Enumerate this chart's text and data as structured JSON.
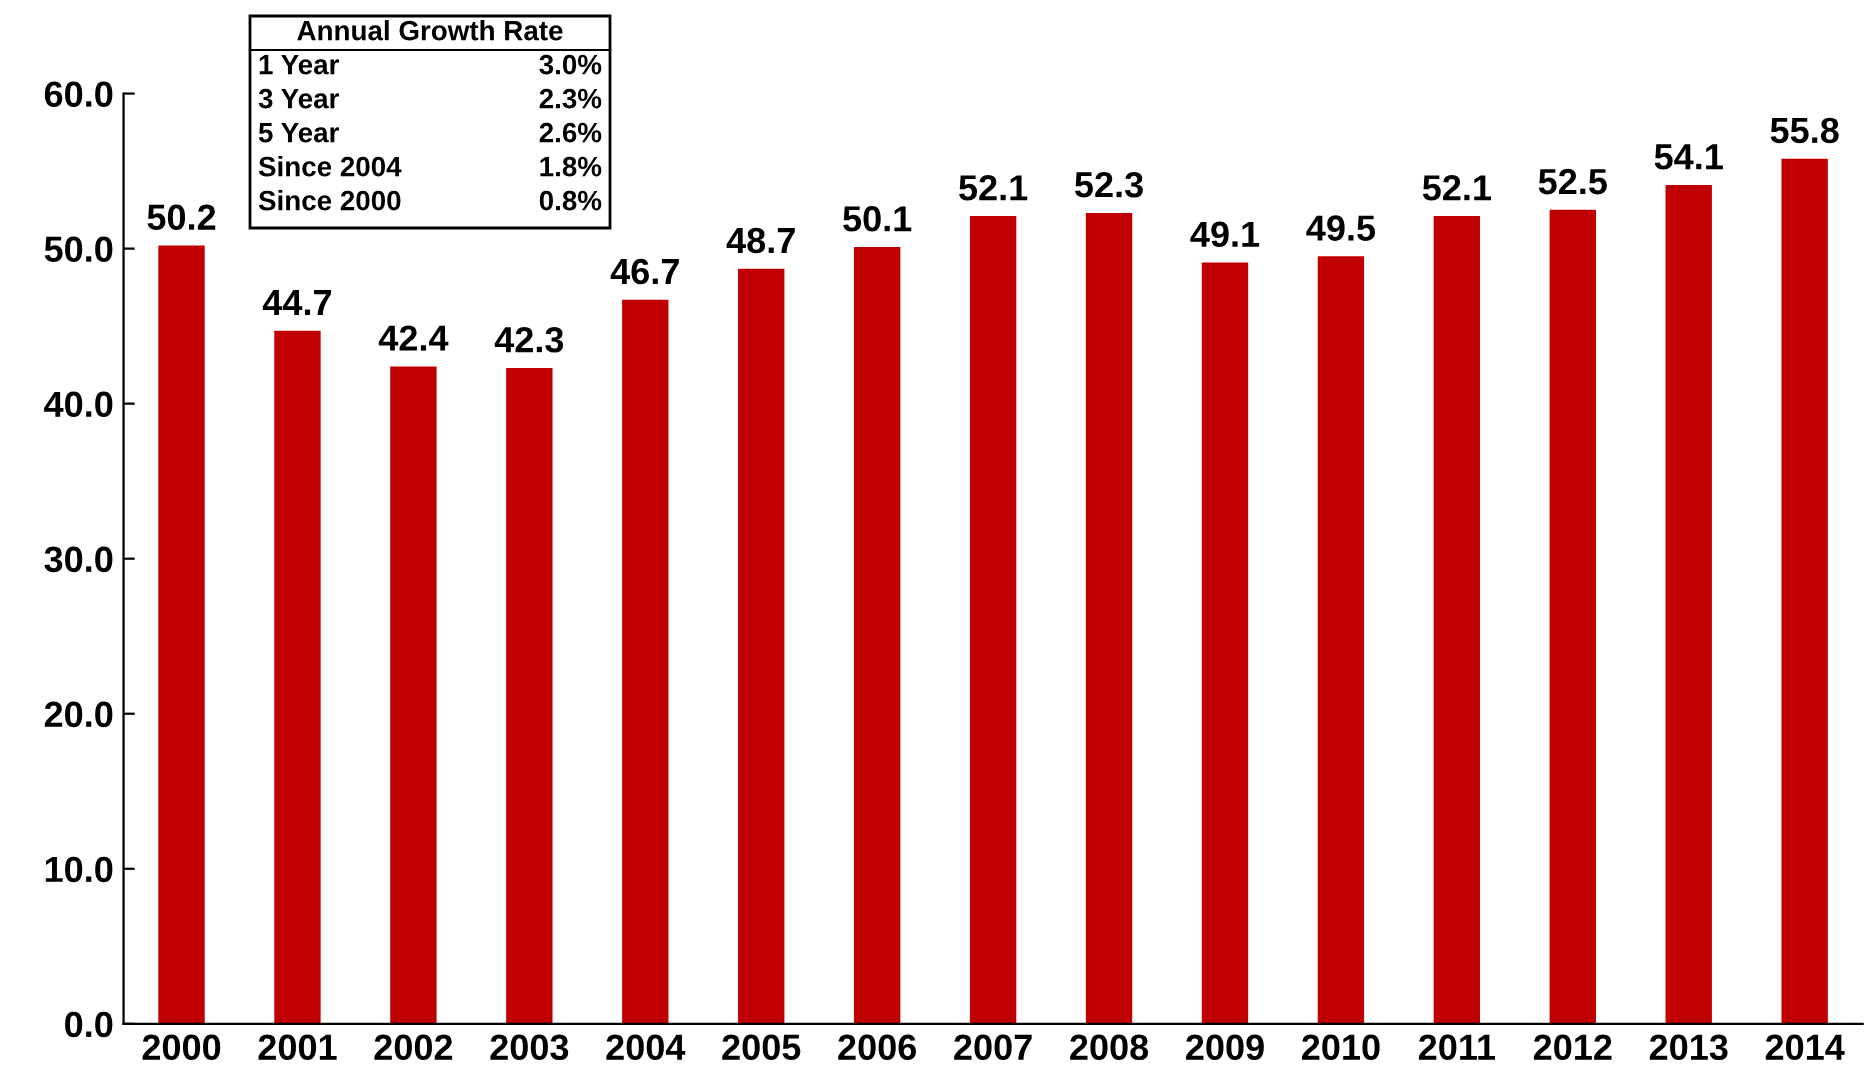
{
  "chart_data": {
    "type": "bar",
    "categories": [
      "2000",
      "2001",
      "2002",
      "2003",
      "2004",
      "2005",
      "2006",
      "2007",
      "2008",
      "2009",
      "2010",
      "2011",
      "2012",
      "2013",
      "2014"
    ],
    "values": [
      50.2,
      44.7,
      42.4,
      42.3,
      46.7,
      48.7,
      50.1,
      52.1,
      52.3,
      49.1,
      49.5,
      52.1,
      52.5,
      54.1,
      55.8
    ],
    "color": "#c00000",
    "ylim": [
      0,
      60
    ],
    "yticks": [
      {
        "value": 0,
        "label": "0.0"
      },
      {
        "value": 10,
        "label": "10.0"
      },
      {
        "value": 20,
        "label": "20.0"
      },
      {
        "value": 30,
        "label": "30.0"
      },
      {
        "value": 40,
        "label": "40.0"
      },
      {
        "value": 50,
        "label": "50.0"
      },
      {
        "value": 60,
        "label": "60.0"
      }
    ],
    "data_labels": true,
    "grid": false,
    "annotations": [
      "Annual Growth Rate",
      "1 Year",
      "3.0%",
      "3 Year",
      "2.3%",
      "5 Year",
      "2.6%",
      "Since 2004",
      "1.8%",
      "Since 2000",
      "0.8%"
    ]
  }
}
